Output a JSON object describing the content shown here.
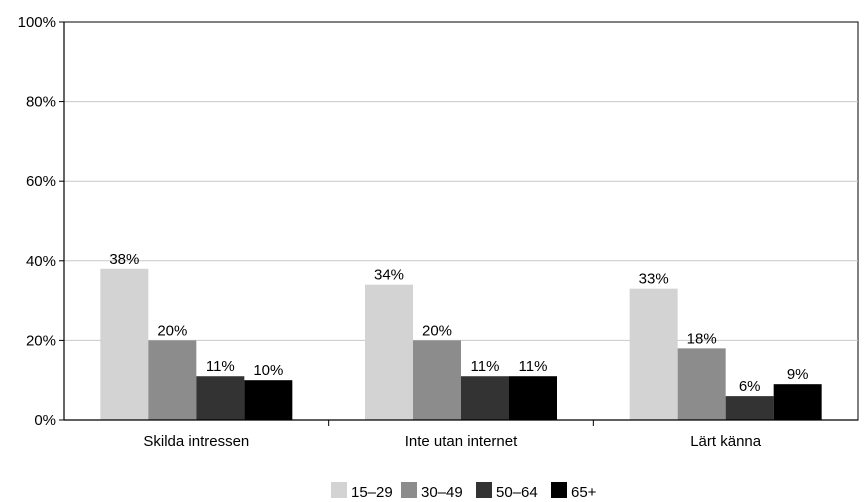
{
  "chart_data": {
    "type": "bar",
    "categories": [
      "Skilda intressen",
      "Inte utan internet",
      "Lärt känna"
    ],
    "series": [
      {
        "name": "15–29",
        "values": [
          38,
          34,
          33
        ],
        "color": "#d3d3d3"
      },
      {
        "name": "30–49",
        "values": [
          20,
          20,
          18
        ],
        "color": "#8c8c8c"
      },
      {
        "name": "50–64",
        "values": [
          11,
          11,
          6
        ],
        "color": "#333333"
      },
      {
        "name": "65+",
        "values": [
          10,
          11,
          9
        ],
        "color": "#000000"
      }
    ],
    "data_labels": [
      [
        "38%",
        "34%",
        "33%"
      ],
      [
        "20%",
        "20%",
        "18%"
      ],
      [
        "11%",
        "11%",
        "6%"
      ],
      [
        "10%",
        "11%",
        "9%"
      ]
    ],
    "ylim": [
      0,
      100
    ],
    "yticks": [
      0,
      20,
      40,
      60,
      80,
      100
    ],
    "ytick_labels": [
      "0%",
      "20%",
      "40%",
      "60%",
      "80%",
      "100%"
    ],
    "grid": true,
    "legend": "bottom",
    "title": "",
    "xlabel": "",
    "ylabel": ""
  }
}
